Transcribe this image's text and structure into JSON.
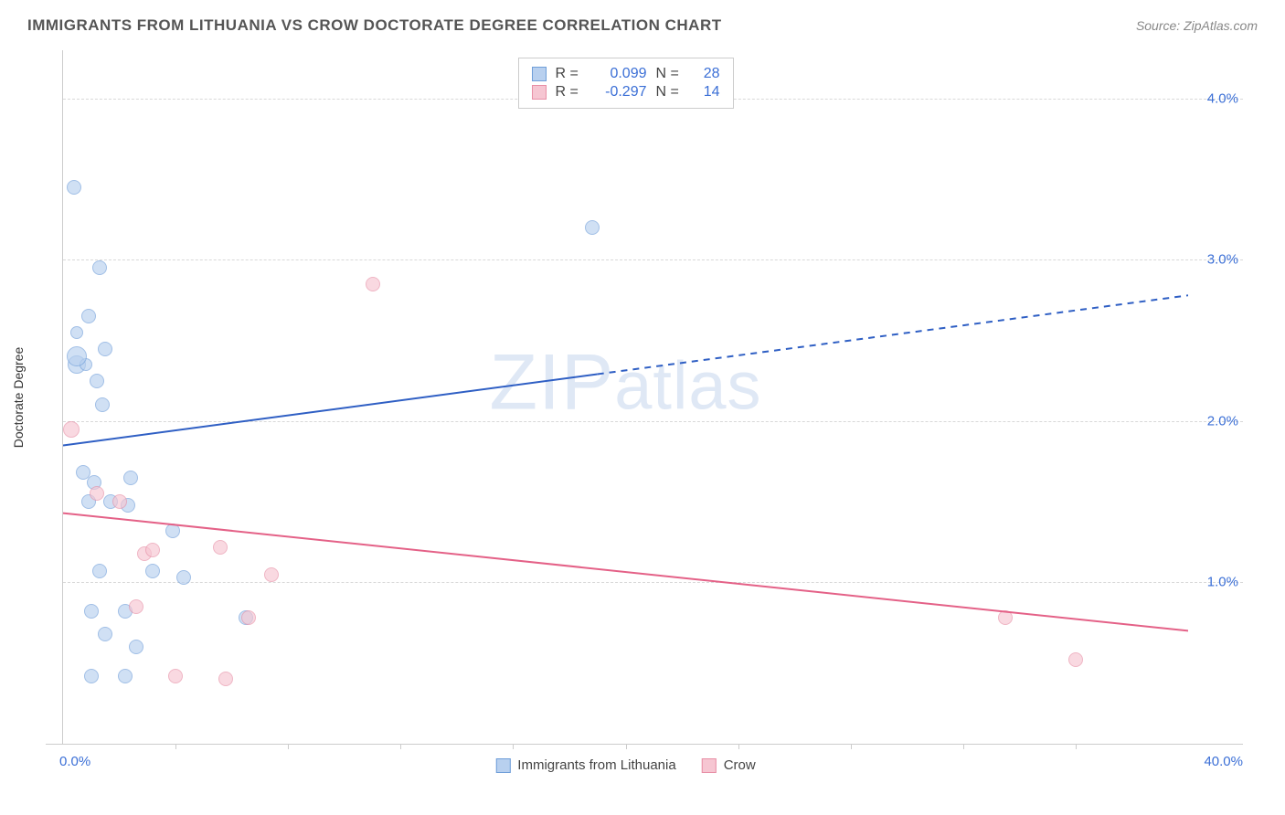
{
  "header": {
    "title": "IMMIGRANTS FROM LITHUANIA VS CROW DOCTORATE DEGREE CORRELATION CHART",
    "source": "Source: ZipAtlas.com"
  },
  "watermark": {
    "text_a": "ZIP",
    "text_b": "atlas"
  },
  "axes": {
    "ylabel": "Doctorate Degree",
    "xlim": [
      0,
      40
    ],
    "ylim": [
      0,
      4.3
    ],
    "xlim_labels": {
      "min": "0.0%",
      "max": "40.0%"
    },
    "ygrid": [
      {
        "v": 1.0,
        "label": "1.0%"
      },
      {
        "v": 2.0,
        "label": "2.0%"
      },
      {
        "v": 3.0,
        "label": "3.0%"
      },
      {
        "v": 4.0,
        "label": "4.0%"
      }
    ],
    "xtick_positions": [
      4,
      8,
      12,
      16,
      20,
      24,
      28,
      32,
      36
    ]
  },
  "series": {
    "a": {
      "label": "Immigrants from Lithuania",
      "fill": "#b8d0ef",
      "stroke": "#6f9ed9",
      "fill_opacity": 0.65,
      "line_color": "#2f5fc4",
      "line_width": 2,
      "r_label": "R =",
      "r_value": "0.099",
      "n_label": "N =",
      "n_value": "28",
      "trend": {
        "y_at_xmin": 1.85,
        "y_at_xmax": 2.78,
        "solid_until_x": 19
      },
      "points": [
        {
          "x": 0.4,
          "y": 3.45,
          "r": 8
        },
        {
          "x": 1.3,
          "y": 2.95,
          "r": 8
        },
        {
          "x": 0.9,
          "y": 2.65,
          "r": 8
        },
        {
          "x": 0.5,
          "y": 2.55,
          "r": 7
        },
        {
          "x": 1.5,
          "y": 2.45,
          "r": 8
        },
        {
          "x": 0.5,
          "y": 2.35,
          "r": 10
        },
        {
          "x": 0.8,
          "y": 2.35,
          "r": 7
        },
        {
          "x": 1.2,
          "y": 2.25,
          "r": 8
        },
        {
          "x": 1.4,
          "y": 2.1,
          "r": 8
        },
        {
          "x": 18.8,
          "y": 3.2,
          "r": 8
        },
        {
          "x": 0.7,
          "y": 1.68,
          "r": 8
        },
        {
          "x": 1.1,
          "y": 1.62,
          "r": 8
        },
        {
          "x": 2.4,
          "y": 1.65,
          "r": 8
        },
        {
          "x": 0.9,
          "y": 1.5,
          "r": 8
        },
        {
          "x": 1.7,
          "y": 1.5,
          "r": 8
        },
        {
          "x": 2.3,
          "y": 1.48,
          "r": 8
        },
        {
          "x": 3.9,
          "y": 1.32,
          "r": 8
        },
        {
          "x": 1.3,
          "y": 1.07,
          "r": 8
        },
        {
          "x": 3.2,
          "y": 1.07,
          "r": 8
        },
        {
          "x": 4.3,
          "y": 1.03,
          "r": 8
        },
        {
          "x": 1.0,
          "y": 0.82,
          "r": 8
        },
        {
          "x": 2.2,
          "y": 0.82,
          "r": 8
        },
        {
          "x": 6.5,
          "y": 0.78,
          "r": 8
        },
        {
          "x": 1.5,
          "y": 0.68,
          "r": 8
        },
        {
          "x": 2.6,
          "y": 0.6,
          "r": 8
        },
        {
          "x": 1.0,
          "y": 0.42,
          "r": 8
        },
        {
          "x": 2.2,
          "y": 0.42,
          "r": 8
        },
        {
          "x": 0.5,
          "y": 2.4,
          "r": 11
        }
      ]
    },
    "b": {
      "label": "Crow",
      "fill": "#f6c6d2",
      "stroke": "#e88fa6",
      "fill_opacity": 0.65,
      "line_color": "#e46187",
      "line_width": 2,
      "r_label": "R =",
      "r_value": "-0.297",
      "n_label": "N =",
      "n_value": "14",
      "trend": {
        "y_at_xmin": 1.43,
        "y_at_xmax": 0.7
      },
      "points": [
        {
          "x": 0.3,
          "y": 1.95,
          "r": 9
        },
        {
          "x": 11.0,
          "y": 2.85,
          "r": 8
        },
        {
          "x": 1.2,
          "y": 1.55,
          "r": 8
        },
        {
          "x": 2.0,
          "y": 1.5,
          "r": 8
        },
        {
          "x": 2.9,
          "y": 1.18,
          "r": 8
        },
        {
          "x": 3.2,
          "y": 1.2,
          "r": 8
        },
        {
          "x": 5.6,
          "y": 1.22,
          "r": 8
        },
        {
          "x": 7.4,
          "y": 1.05,
          "r": 8
        },
        {
          "x": 2.6,
          "y": 0.85,
          "r": 8
        },
        {
          "x": 6.6,
          "y": 0.78,
          "r": 8
        },
        {
          "x": 5.8,
          "y": 0.4,
          "r": 8
        },
        {
          "x": 4.0,
          "y": 0.42,
          "r": 8
        },
        {
          "x": 33.5,
          "y": 0.78,
          "r": 8
        },
        {
          "x": 36.0,
          "y": 0.52,
          "r": 8
        }
      ]
    }
  },
  "colors": {
    "grid": "#d8d8d8",
    "axis": "#cccccc",
    "text": "#555555",
    "tick_text": "#3b6fd6"
  }
}
